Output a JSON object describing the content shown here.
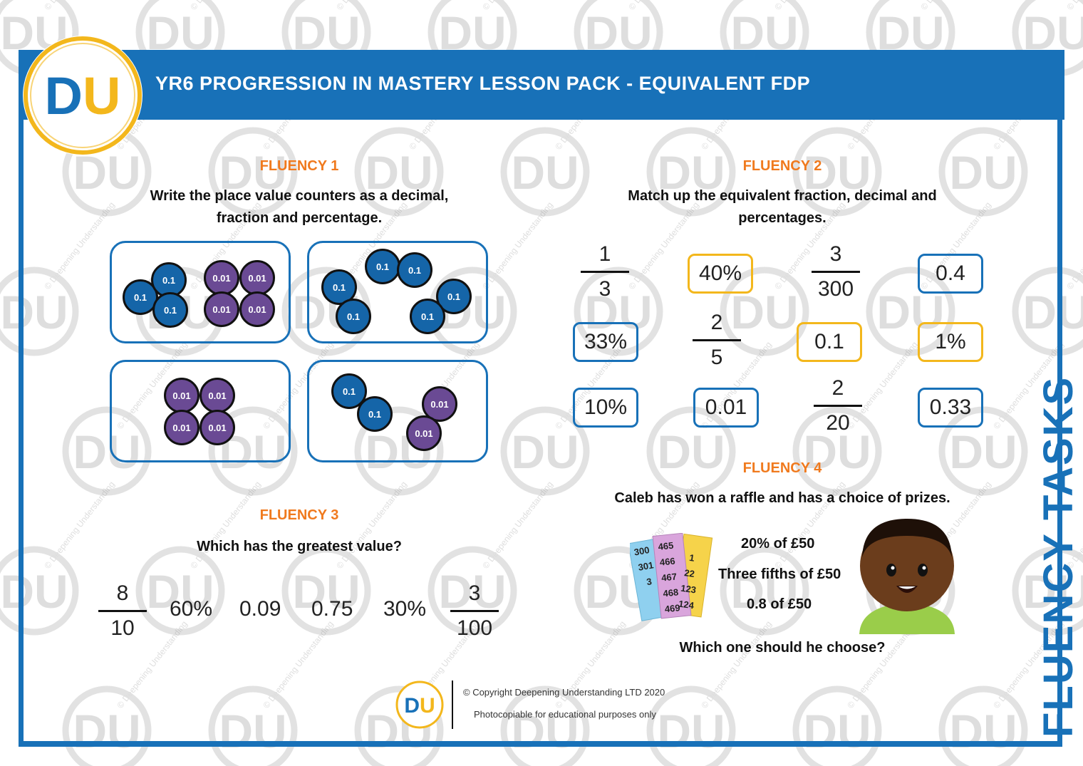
{
  "header": {
    "title": "YR6 PROGRESSION IN MASTERY LESSON PACK - EQUIVALENT FDP",
    "logo_text": "DU"
  },
  "side_title": "FLUENCY TASKS",
  "watermark": {
    "logo_text": "DU",
    "text": "© Deepening Understanding"
  },
  "fluency1": {
    "label": "FLUENCY 1",
    "instruction_line1": "Write the place value counters as a decimal,",
    "instruction_line2": "fraction and percentage.",
    "boxes": [
      {
        "tenths": 3,
        "hundredths": 4
      },
      {
        "tenths": 6,
        "hundredths": 0
      },
      {
        "tenths": 0,
        "hundredths": 4
      },
      {
        "tenths": 2,
        "hundredths": 2
      }
    ],
    "tenth_label": "0.1",
    "hundredth_label": "0.01"
  },
  "fluency2": {
    "label": "FLUENCY 2",
    "instruction_line1": "Match up the equivalent fraction, decimal and",
    "instruction_line2": "percentages.",
    "fractions": [
      {
        "num": "1",
        "den": "3"
      },
      {
        "num": "3",
        "den": "300"
      },
      {
        "num": "2",
        "den": "5"
      },
      {
        "num": "2",
        "den": "20"
      }
    ],
    "cards": [
      {
        "text": "40%",
        "color": "#f3b71c"
      },
      {
        "text": "0.4",
        "color": "#1871b8"
      },
      {
        "text": "33%",
        "color": "#1871b8"
      },
      {
        "text": "0.1",
        "color": "#f3b71c"
      },
      {
        "text": "1%",
        "color": "#f3b71c"
      },
      {
        "text": "10%",
        "color": "#1871b8"
      },
      {
        "text": "0.01",
        "color": "#1871b8"
      },
      {
        "text": "0.33",
        "color": "#1871b8"
      }
    ]
  },
  "fluency3": {
    "label": "FLUENCY 3",
    "instruction": "Which has the greatest value?",
    "frac_first": {
      "num": "8",
      "den": "10"
    },
    "values": [
      "60%",
      "0.09",
      "0.75",
      "30%"
    ],
    "frac_last": {
      "num": "3",
      "den": "100"
    }
  },
  "fluency4": {
    "label": "FLUENCY 4",
    "instruction": "Caleb has won a raffle and has a choice of prizes.",
    "prizes": [
      "20% of £50",
      "Three fifths of £50",
      "0.8 of £50"
    ],
    "question": "Which one should he choose?",
    "tickets": {
      "blue": [
        "300",
        "301",
        "3"
      ],
      "pink": [
        "465",
        "466",
        "467",
        "468",
        "469"
      ],
      "yellow": [
        "1",
        "22",
        "123",
        "124"
      ]
    }
  },
  "footer": {
    "copyright": "© Copyright Deepening Understanding LTD 2020",
    "note": "Photocopiable for educational purposes only",
    "logo_text": "DU"
  },
  "colors": {
    "brand_blue": "#1871b8",
    "brand_yellow": "#f3b71c",
    "label_orange": "#f07a1e",
    "tenth_counter": "#1565a8",
    "hundredth_counter": "#6a4a94"
  }
}
